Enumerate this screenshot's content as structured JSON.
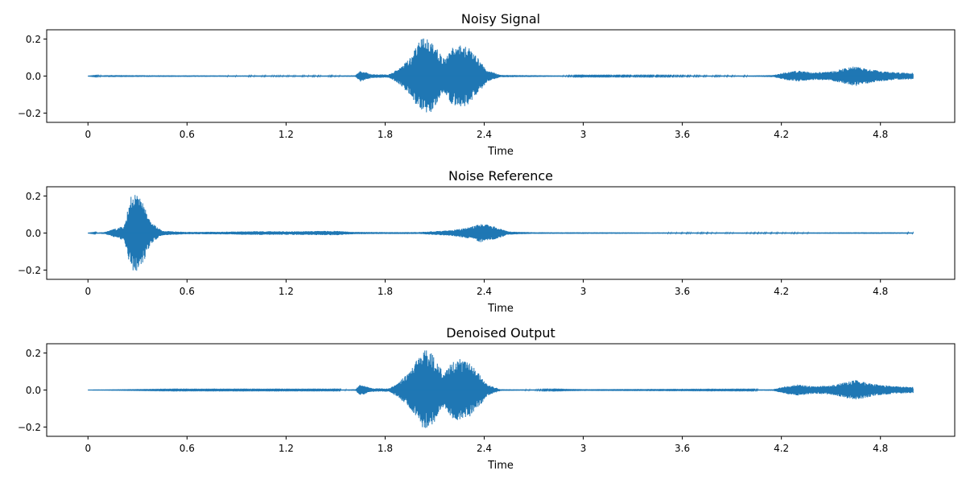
{
  "chart_data": [
    {
      "type": "line",
      "title": "Noisy Signal",
      "xlabel": "Time",
      "ylabel": "",
      "xlim": [
        -0.25,
        5.25
      ],
      "ylim": [
        -0.25,
        0.25
      ],
      "xticks": [
        0,
        0.6,
        1.2,
        1.8,
        2.4,
        3,
        3.6,
        4.2,
        4.8
      ],
      "xtick_labels": [
        "0",
        "0.6",
        "1.2",
        "1.8",
        "2.4",
        "3",
        "3.6",
        "4.2",
        "4.8"
      ],
      "yticks": [
        0.2,
        0.0,
        -0.2
      ],
      "ytick_labels": [
        "0.2",
        "0.0",
        "−0.2"
      ],
      "duration": 5.0,
      "color": "#1f77b4",
      "envelope": {
        "x": [
          0,
          0.12,
          0.4,
          1.0,
          1.5,
          1.62,
          1.65,
          1.72,
          1.82,
          1.88,
          1.95,
          2.0,
          2.04,
          2.08,
          2.12,
          2.16,
          2.2,
          2.25,
          2.3,
          2.36,
          2.42,
          2.5,
          3.0,
          4.0,
          4.15,
          4.22,
          4.3,
          4.4,
          4.5,
          4.6,
          4.65,
          4.72,
          4.8,
          4.9,
          5.0
        ],
        "y": [
          0,
          0.005,
          0.004,
          0.003,
          0.003,
          0.004,
          0.03,
          0.01,
          0.008,
          0.04,
          0.1,
          0.18,
          0.22,
          0.2,
          0.14,
          0.09,
          0.15,
          0.17,
          0.16,
          0.1,
          0.03,
          0.006,
          0.002,
          0.003,
          0.005,
          0.02,
          0.03,
          0.02,
          0.025,
          0.045,
          0.055,
          0.04,
          0.028,
          0.02,
          0.018
        ]
      }
    },
    {
      "type": "line",
      "title": "Noise Reference",
      "xlabel": "Time",
      "ylabel": "",
      "xlim": [
        -0.25,
        5.25
      ],
      "ylim": [
        -0.25,
        0.25
      ],
      "xticks": [
        0,
        0.6,
        1.2,
        1.8,
        2.4,
        3,
        3.6,
        4.2,
        4.8
      ],
      "xtick_labels": [
        "0",
        "0.6",
        "1.2",
        "1.8",
        "2.4",
        "3",
        "3.6",
        "4.2",
        "4.8"
      ],
      "yticks": [
        0.2,
        0.0,
        -0.2
      ],
      "ytick_labels": [
        "0.2",
        "0.0",
        "−0.2"
      ],
      "duration": 5.0,
      "color": "#1f77b4",
      "envelope": {
        "x": [
          0,
          0.1,
          0.15,
          0.22,
          0.26,
          0.3,
          0.34,
          0.38,
          0.45,
          0.6,
          0.8,
          1.0,
          1.2,
          1.5,
          1.6,
          1.8,
          2.0,
          2.2,
          2.3,
          2.38,
          2.42,
          2.48,
          2.55,
          2.7,
          3.0,
          3.6,
          4.2,
          4.8,
          5.0
        ],
        "y": [
          0,
          0.005,
          0.02,
          0.04,
          0.2,
          0.21,
          0.15,
          0.06,
          0.012,
          0.006,
          0.007,
          0.01,
          0.009,
          0.012,
          0.006,
          0.005,
          0.005,
          0.015,
          0.03,
          0.05,
          0.045,
          0.03,
          0.008,
          0.004,
          0.004,
          0.003,
          0.003,
          0.004,
          0.003
        ]
      }
    },
    {
      "type": "line",
      "title": "Denoised Output",
      "xlabel": "Time",
      "ylabel": "",
      "xlim": [
        -0.25,
        5.25
      ],
      "ylim": [
        -0.25,
        0.25
      ],
      "xticks": [
        0,
        0.6,
        1.2,
        1.8,
        2.4,
        3,
        3.6,
        4.2,
        4.8
      ],
      "xtick_labels": [
        "0",
        "0.6",
        "1.2",
        "1.8",
        "2.4",
        "3",
        "3.6",
        "4.2",
        "4.8"
      ],
      "yticks": [
        0.2,
        0.0,
        -0.2
      ],
      "ytick_labels": [
        "0.2",
        "0.0",
        "−0.2"
      ],
      "duration": 5.0,
      "color": "#1f77b4",
      "envelope": {
        "x": [
          0,
          0.5,
          1.0,
          1.5,
          1.62,
          1.65,
          1.72,
          1.82,
          1.88,
          1.95,
          2.0,
          2.04,
          2.08,
          2.12,
          2.16,
          2.2,
          2.25,
          2.3,
          2.36,
          2.42,
          2.5,
          3.0,
          4.0,
          4.15,
          4.22,
          4.3,
          4.4,
          4.5,
          4.6,
          4.65,
          4.72,
          4.8,
          4.9,
          5.0
        ],
        "y": [
          0,
          0.002,
          0.002,
          0.002,
          0.004,
          0.03,
          0.01,
          0.008,
          0.04,
          0.1,
          0.18,
          0.22,
          0.2,
          0.14,
          0.09,
          0.15,
          0.17,
          0.16,
          0.1,
          0.03,
          0.004,
          0.001,
          0.002,
          0.004,
          0.02,
          0.03,
          0.02,
          0.025,
          0.045,
          0.055,
          0.04,
          0.028,
          0.02,
          0.016
        ]
      }
    }
  ]
}
